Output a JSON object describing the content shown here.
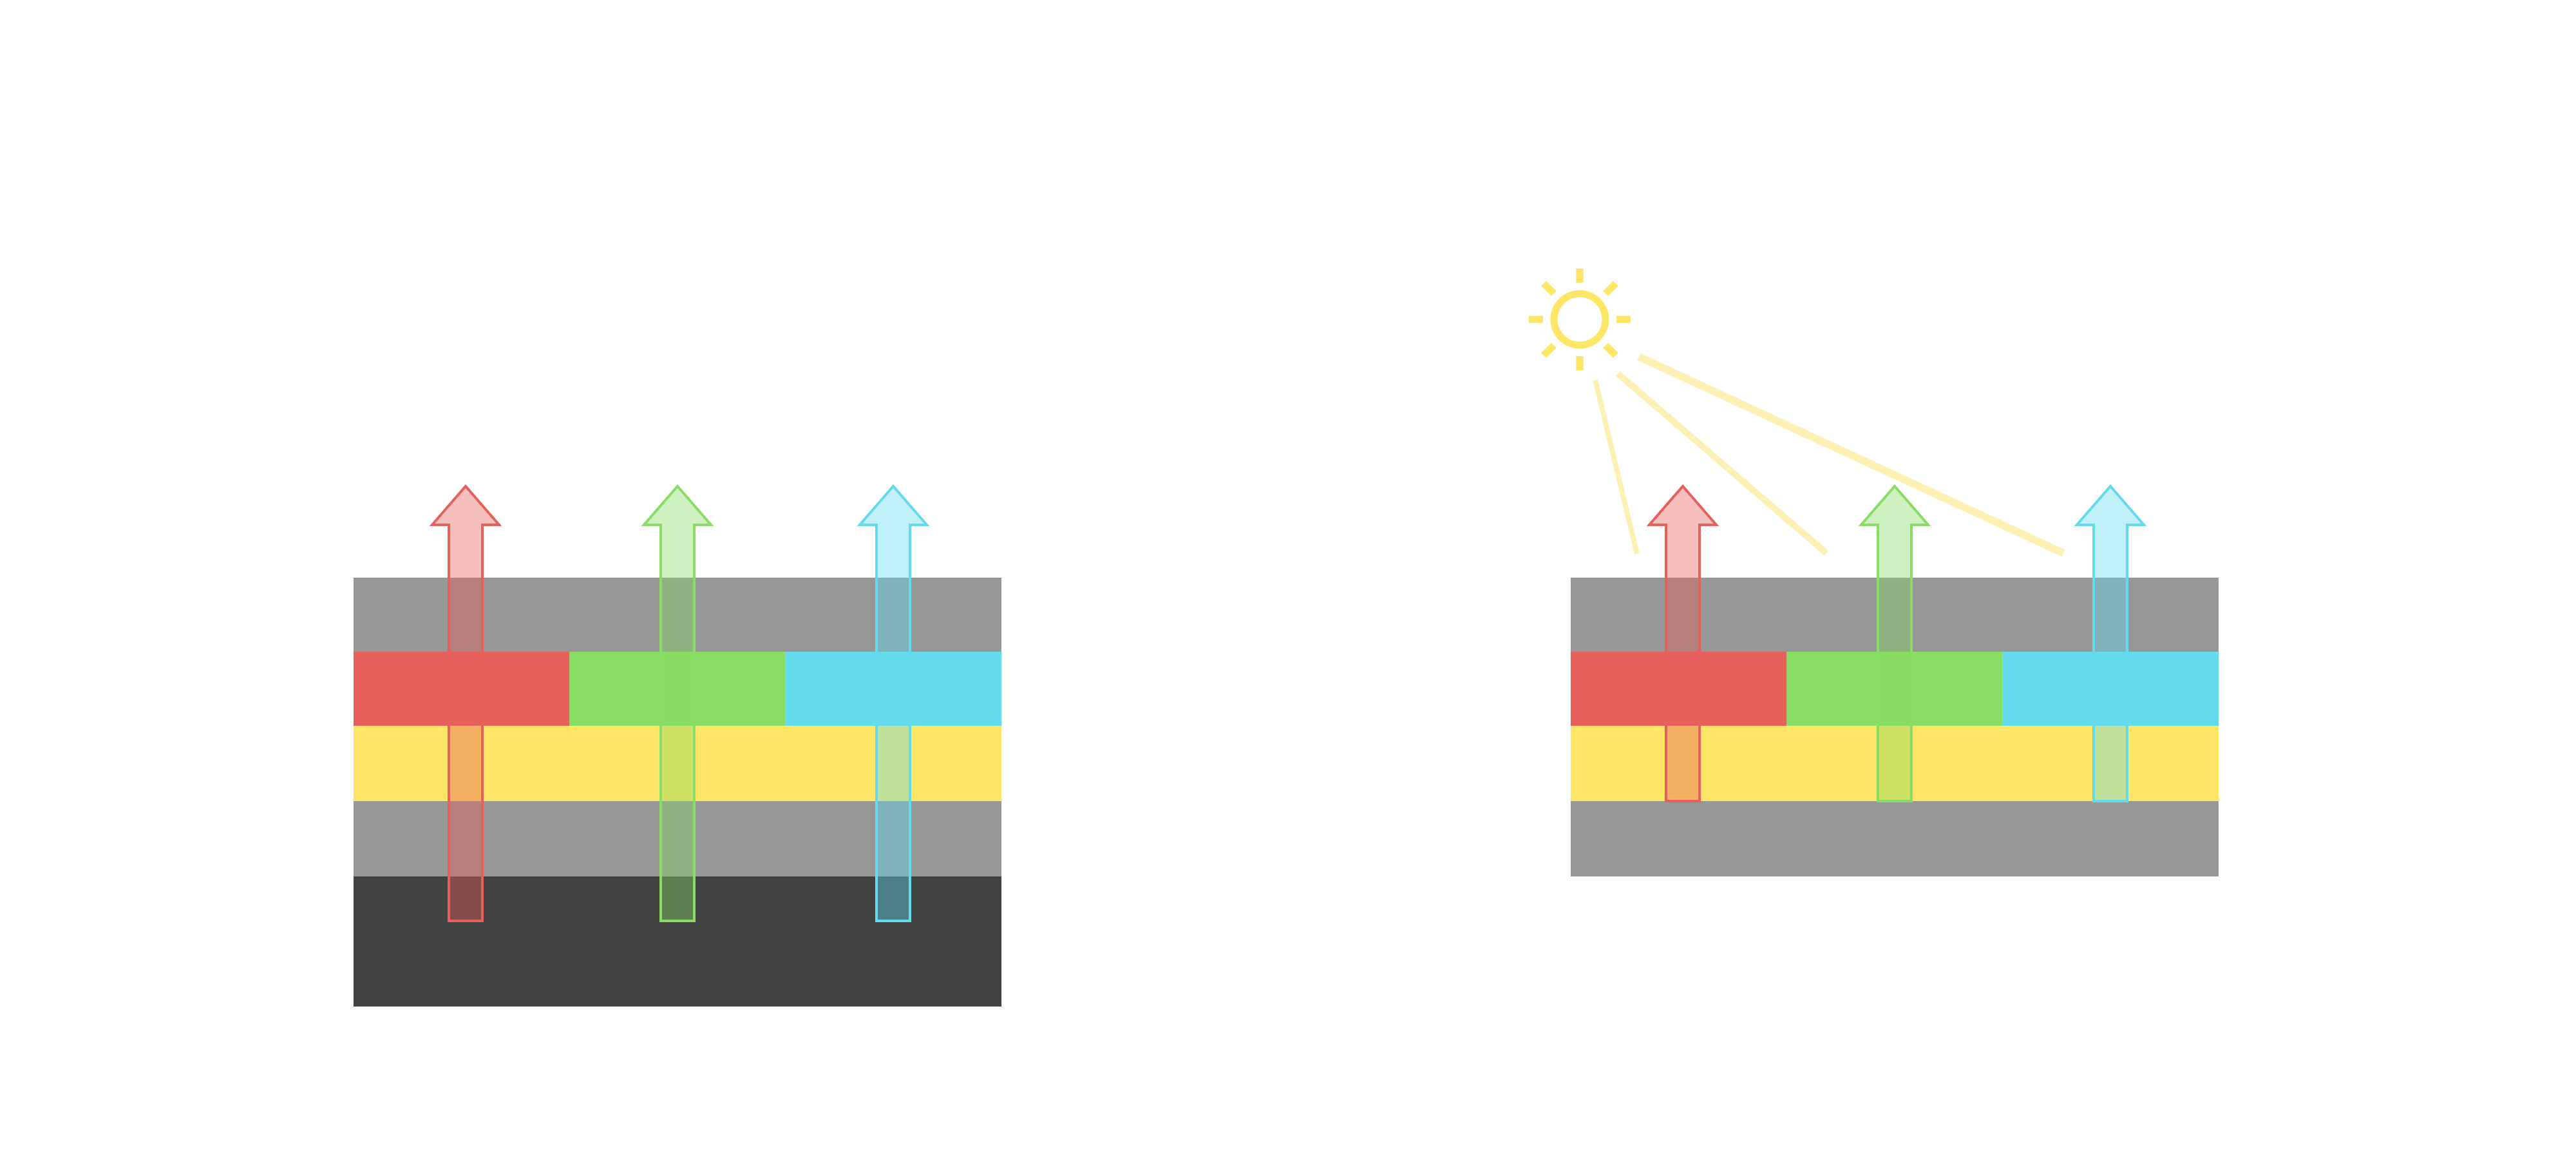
{
  "colors": {
    "background": "#ffffff",
    "gray_layer": "#979797",
    "dark_layer": "#424242",
    "yellow_layer": "#fee566",
    "red": "#e6605c",
    "green": "#88dd65",
    "blue": "#63dbed",
    "sun": "#fee566",
    "sun_beam": "#fdf0b5"
  },
  "diagrams": [
    {
      "name": "left-stack",
      "layers": [
        "gray",
        "color-filter",
        "yellow",
        "gray",
        "dark"
      ],
      "arrows": [
        "red",
        "green",
        "blue"
      ],
      "sun": false
    },
    {
      "name": "right-stack",
      "layers": [
        "gray",
        "color-filter",
        "yellow",
        "gray"
      ],
      "arrows": [
        "red",
        "green",
        "blue"
      ],
      "sun": true
    }
  ]
}
